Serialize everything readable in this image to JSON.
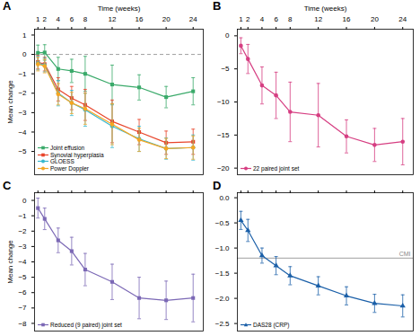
{
  "chart_data": [
    {
      "type": "line",
      "title": "A",
      "xlabel": "Time (weeks)",
      "ylabel": "Mean change",
      "x": [
        1,
        2,
        4,
        6,
        8,
        12,
        16,
        20,
        24
      ],
      "xlim": [
        0.5,
        25.5
      ],
      "xticks": [
        1,
        2,
        4,
        6,
        8,
        12,
        16,
        20,
        24
      ],
      "ylim": [
        -6.2,
        1.3
      ],
      "yticks": [
        1,
        0,
        -1,
        -2,
        -3,
        -4,
        -5
      ],
      "grid": false,
      "legend": "lower left",
      "reference_lines": [
        {
          "y": 0,
          "line_style": "dashed",
          "color": "#888888"
        }
      ],
      "series": [
        {
          "name": "Joint effusion",
          "color": "#3aaa6a",
          "marker": "square",
          "values": [
            0.08,
            0.1,
            -0.75,
            -0.85,
            -1.0,
            -1.55,
            -1.7,
            -2.2,
            -1.9
          ],
          "errors": [
            0.4,
            0.4,
            0.6,
            0.6,
            0.9,
            1.0,
            0.65,
            0.55,
            0.7
          ]
        },
        {
          "name": "Synovial hyperplasia",
          "color": "#e8442a",
          "marker": "square",
          "values": [
            -0.4,
            -0.5,
            -1.8,
            -2.25,
            -2.6,
            -3.45,
            -4.0,
            -4.55,
            -4.5
          ],
          "errors": [
            0.35,
            0.35,
            0.6,
            0.6,
            0.8,
            1.1,
            0.65,
            0.6,
            0.65
          ]
        },
        {
          "name": "GLOESS",
          "color": "#37b8ce",
          "marker": "circle",
          "values": [
            -0.45,
            -0.55,
            -2.0,
            -2.5,
            -2.85,
            -3.7,
            -4.35,
            -4.85,
            -4.8
          ],
          "errors": [
            0.35,
            0.35,
            0.65,
            0.65,
            0.85,
            1.1,
            0.65,
            0.55,
            0.65
          ]
        },
        {
          "name": "Power Doppler",
          "color": "#f5a623",
          "marker": "circle",
          "values": [
            -0.5,
            -0.6,
            -2.05,
            -2.5,
            -2.8,
            -3.6,
            -4.4,
            -4.85,
            -4.8
          ],
          "errors": [
            0.35,
            0.35,
            0.55,
            0.55,
            0.8,
            1.05,
            0.6,
            0.52,
            0.6
          ]
        }
      ]
    },
    {
      "type": "line",
      "title": "B",
      "xlabel": "Time (weeks)",
      "x": [
        1,
        2,
        4,
        6,
        8,
        12,
        16,
        20,
        24
      ],
      "xlim": [
        0.5,
        25.5
      ],
      "xticks": [
        1,
        2,
        4,
        6,
        8,
        12,
        16,
        20,
        24
      ],
      "ylim": [
        -21,
        1
      ],
      "yticks": [
        0,
        -5,
        -10,
        -15,
        -20
      ],
      "grid": false,
      "legend": "lower left",
      "series": [
        {
          "name": "22 paired joint set",
          "color": "#d63e82",
          "marker": "circle",
          "values": [
            -1.5,
            -3.5,
            -7.5,
            -9.0,
            -11.5,
            -12.0,
            -15.2,
            -16.5,
            -16.0
          ],
          "errors": [
            1.2,
            2.2,
            2.8,
            3.5,
            4.5,
            4.8,
            2.5,
            2.5,
            3.5
          ]
        }
      ]
    },
    {
      "type": "line",
      "title": "C",
      "ylabel": "Mean change",
      "x": [
        1,
        2,
        4,
        6,
        8,
        12,
        16,
        20,
        24
      ],
      "xlim": [
        0.5,
        25.5
      ],
      "xticks": [
        1,
        2,
        4,
        6,
        8,
        12,
        16,
        20,
        24
      ],
      "ylim": [
        -8.5,
        0.5
      ],
      "yticks": [
        0,
        -1,
        -2,
        -3,
        -4,
        -5,
        -6,
        -7,
        -8
      ],
      "grid": false,
      "legend": "lower left",
      "tick_labels": "y",
      "series": [
        {
          "name": "Reduced (9 paired) joint set",
          "color": "#7b68b5",
          "marker": "square",
          "values": [
            -0.5,
            -1.2,
            -2.6,
            -3.3,
            -4.5,
            -5.3,
            -6.35,
            -6.5,
            -6.35
          ],
          "errors": [
            0.65,
            0.7,
            0.8,
            0.9,
            1.05,
            1.15,
            1.35,
            1.25,
            1.55
          ]
        }
      ]
    },
    {
      "type": "line",
      "title": "D",
      "x": [
        1,
        2,
        4,
        6,
        8,
        12,
        16,
        20,
        24
      ],
      "xlim": [
        0.5,
        25.5
      ],
      "xticks": [
        1,
        2,
        4,
        6,
        8,
        12,
        16,
        20,
        24
      ],
      "ylim": [
        -2.65,
        0.1
      ],
      "yticks": [
        {
          "value": 0,
          "label": "0.0"
        },
        -0.5,
        {
          "value": -1,
          "label": "−1.0"
        },
        -1.5,
        {
          "value": -2,
          "label": "−2.0"
        },
        -2.5
      ],
      "grid": false,
      "legend": "lower left",
      "tick_labels": "y",
      "reference_lines": [
        {
          "y": -1.2,
          "label": "CMI",
          "line_style": "solid",
          "color": "#888888"
        }
      ],
      "series": [
        {
          "name": "DAS28 (CRP)",
          "color": "#1a5fa8",
          "marker": "triangle",
          "values": [
            -0.45,
            -0.65,
            -1.15,
            -1.35,
            -1.55,
            -1.75,
            -1.95,
            -2.1,
            -2.15
          ],
          "errors": [
            0.18,
            0.22,
            0.15,
            0.18,
            0.18,
            0.18,
            0.18,
            0.18,
            0.22
          ]
        }
      ]
    }
  ]
}
